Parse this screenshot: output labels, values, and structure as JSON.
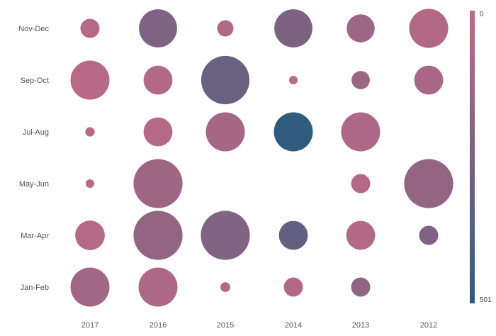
{
  "chart_data": {
    "type": "bubble",
    "x_categories": [
      "2017",
      "2016",
      "2015",
      "2014",
      "2013",
      "2012"
    ],
    "y_categories": [
      "Nov-Dec",
      "Sep-Oct",
      "Jul-Aug",
      "May-Jun",
      "Mar-Apr",
      "Jan-Feb"
    ],
    "color_scale": {
      "min": 0,
      "max": 501,
      "min_label": "0",
      "max_label": "501",
      "color_min": "#c26a86",
      "color_max": "#2f5b7e"
    },
    "points": [
      {
        "x": "2017",
        "y": "Nov-Dec",
        "size": 0.49,
        "color": 45
      },
      {
        "x": "2016",
        "y": "Nov-Dec",
        "size": 0.98,
        "color": 230
      },
      {
        "x": "2015",
        "y": "Nov-Dec",
        "size": 0.42,
        "color": 60
      },
      {
        "x": "2014",
        "y": "Nov-Dec",
        "size": 0.98,
        "color": 240
      },
      {
        "x": "2013",
        "y": "Nov-Dec",
        "size": 0.72,
        "color": 130
      },
      {
        "x": "2012",
        "y": "Nov-Dec",
        "size": 1.0,
        "color": 55
      },
      {
        "x": "2017",
        "y": "Sep-Oct",
        "size": 1.0,
        "color": 35
      },
      {
        "x": "2016",
        "y": "Sep-Oct",
        "size": 0.74,
        "color": 50
      },
      {
        "x": "2015",
        "y": "Sep-Oct",
        "size": 1.24,
        "color": 300
      },
      {
        "x": "2014",
        "y": "Sep-Oct",
        "size": 0.22,
        "color": 30
      },
      {
        "x": "2013",
        "y": "Sep-Oct",
        "size": 0.47,
        "color": 140
      },
      {
        "x": "2012",
        "y": "Sep-Oct",
        "size": 0.74,
        "color": 90
      },
      {
        "x": "2017",
        "y": "Jul-Aug",
        "size": 0.24,
        "color": 30
      },
      {
        "x": "2016",
        "y": "Jul-Aug",
        "size": 0.74,
        "color": 40
      },
      {
        "x": "2015",
        "y": "Jul-Aug",
        "size": 1.0,
        "color": 100
      },
      {
        "x": "2014",
        "y": "Jul-Aug",
        "size": 1.0,
        "color": 501
      },
      {
        "x": "2013",
        "y": "Jul-Aug",
        "size": 1.0,
        "color": 70
      },
      {
        "x": "2017",
        "y": "May-Jun",
        "size": 0.22,
        "color": 30
      },
      {
        "x": "2016",
        "y": "May-Jun",
        "size": 1.26,
        "color": 120
      },
      {
        "x": "2013",
        "y": "May-Jun",
        "size": 0.49,
        "color": 50
      },
      {
        "x": "2012",
        "y": "May-Jun",
        "size": 1.26,
        "color": 160
      },
      {
        "x": "2017",
        "y": "Mar-Apr",
        "size": 0.76,
        "color": 40
      },
      {
        "x": "2016",
        "y": "Mar-Apr",
        "size": 1.26,
        "color": 160
      },
      {
        "x": "2015",
        "y": "Mar-Apr",
        "size": 1.26,
        "color": 220
      },
      {
        "x": "2014",
        "y": "Mar-Apr",
        "size": 0.74,
        "color": 330
      },
      {
        "x": "2013",
        "y": "Mar-Apr",
        "size": 0.74,
        "color": 50
      },
      {
        "x": "2012",
        "y": "Mar-Apr",
        "size": 0.49,
        "color": 230
      },
      {
        "x": "2017",
        "y": "Jan-Feb",
        "size": 1.0,
        "color": 110
      },
      {
        "x": "2016",
        "y": "Jan-Feb",
        "size": 1.0,
        "color": 70
      },
      {
        "x": "2015",
        "y": "Jan-Feb",
        "size": 0.25,
        "color": 50
      },
      {
        "x": "2014",
        "y": "Jan-Feb",
        "size": 0.49,
        "color": 50
      },
      {
        "x": "2013",
        "y": "Jan-Feb",
        "size": 0.49,
        "color": 170
      }
    ],
    "legend": {
      "type": "gradient",
      "position": "right"
    },
    "grid": false
  }
}
